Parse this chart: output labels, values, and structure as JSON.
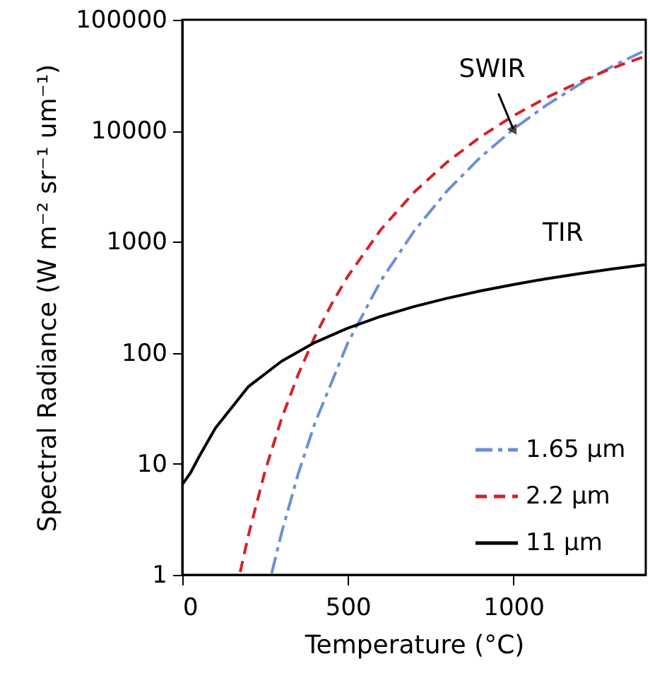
{
  "chart_data": {
    "type": "line",
    "xlabel": "Temperature (°C)",
    "ylabel": "Spectral Radiance (W m⁻² sr⁻¹ um⁻¹)",
    "xlim": [
      0,
      1400
    ],
    "xticks": [
      0,
      500,
      1000
    ],
    "ylim": [
      1,
      100000
    ],
    "yticks": [
      1,
      10,
      100,
      1000,
      10000,
      100000
    ],
    "log": "y",
    "grid": false,
    "legend": "bottom right",
    "marker": "none",
    "series": [
      {
        "name": "1.65 µm",
        "color": "#6a8fd4",
        "line_style": "dashdot",
        "x": [
          270,
          300,
          350,
          400,
          500,
          600,
          700,
          800,
          900,
          1000,
          1100,
          1200,
          1300,
          1400
        ],
        "values": [
          1.03,
          2.39,
          8.1,
          23,
          123,
          447,
          1247,
          2878,
          5755,
          10330,
          17020,
          26210,
          38230,
          53360
        ]
      },
      {
        "name": "2.2 µm",
        "color": "#d62028",
        "line_style": "dashed",
        "x": [
          175,
          200,
          250,
          300,
          350,
          400,
          450,
          500,
          600,
          700,
          800,
          900,
          1000,
          1100,
          1200,
          1300,
          1400
        ],
        "values": [
          1.06,
          2.29,
          8.6,
          25.6,
          63.7,
          139,
          272,
          489,
          1290,
          2791,
          5222,
          8785,
          13640,
          19900,
          27570,
          36740,
          47260
        ]
      },
      {
        "name": "11 µm",
        "color": "#000000",
        "line_style": "solid",
        "x": [
          0,
          25,
          50,
          100,
          200,
          300,
          400,
          500,
          600,
          700,
          800,
          900,
          1000,
          1100,
          1200,
          1300,
          1400
        ],
        "values": [
          6.5,
          8.3,
          11.5,
          21,
          49.7,
          84,
          123.7,
          167,
          213,
          261,
          310,
          361,
          412,
          465,
          517,
          570,
          623
        ]
      }
    ],
    "annotations": [
      {
        "text": "SWIR",
        "x": 1000,
        "y": 10330
      },
      {
        "text": "TIR",
        "x": 1150,
        "y": 490
      }
    ]
  }
}
